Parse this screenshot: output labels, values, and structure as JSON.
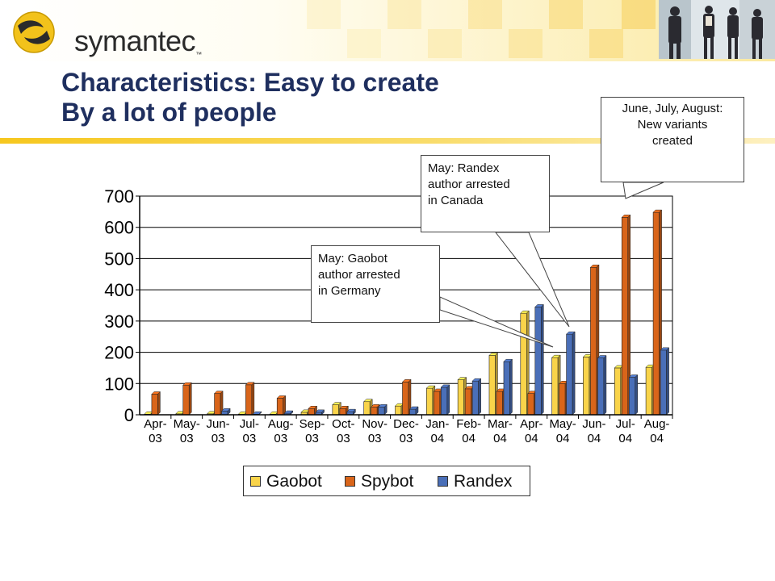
{
  "header": {
    "logo_text": "symantec",
    "logo_mark": "™",
    "colors": {
      "band_light": "#fdf3c2",
      "band_accent": "#f5d04a",
      "title_color": "#1f2f5f"
    }
  },
  "slide": {
    "title_line1": "Characteristics: Easy to create",
    "title_line2": "By a lot of people"
  },
  "callouts": {
    "gaobot": {
      "lines": [
        "May: Gaobot",
        "author arrested",
        "in Germany"
      ]
    },
    "randex": {
      "lines": [
        "May: Randex",
        "author arrested",
        "in Canada"
      ]
    },
    "summer": {
      "lines": [
        "June, July, August:",
        "New variants",
        "created"
      ]
    }
  },
  "legend": {
    "items": [
      {
        "label": "Gaobot",
        "color": "#f9d44a"
      },
      {
        "label": "Spybot",
        "color": "#d9651a"
      },
      {
        "label": "Randex",
        "color": "#4a6fb8"
      }
    ]
  },
  "chart_data": {
    "type": "bar",
    "categories": [
      "Apr-03",
      "May-03",
      "Jun-03",
      "Jul-03",
      "Aug-03",
      "Sep-03",
      "Oct-03",
      "Nov-03",
      "Dec-03",
      "Jan-04",
      "Feb-04",
      "Mar-04",
      "Apr-04",
      "May-04",
      "Jun-04",
      "Jul-04",
      "Aug-04"
    ],
    "category_lines": [
      [
        "Apr-",
        "03"
      ],
      [
        "May-",
        "03"
      ],
      [
        "Jun-",
        "03"
      ],
      [
        "Jul-",
        "03"
      ],
      [
        "Aug-",
        "03"
      ],
      [
        "Sep-",
        "03"
      ],
      [
        "Oct-",
        "03"
      ],
      [
        "Nov-",
        "03"
      ],
      [
        "Dec-",
        "03"
      ],
      [
        "Jan-",
        "04"
      ],
      [
        "Feb-",
        "04"
      ],
      [
        "Mar-",
        "04"
      ],
      [
        "Apr-",
        "04"
      ],
      [
        "May-",
        "04"
      ],
      [
        "Jun-",
        "04"
      ],
      [
        "Jul-",
        "04"
      ],
      [
        "Aug-",
        "04"
      ]
    ],
    "series": [
      {
        "name": "Gaobot",
        "color": "#f9d44a",
        "values": [
          2,
          3,
          3,
          2,
          2,
          8,
          32,
          42,
          28,
          85,
          112,
          190,
          325,
          183,
          185,
          150,
          152
        ]
      },
      {
        "name": "Spybot",
        "color": "#d9651a",
        "values": [
          66,
          95,
          68,
          96,
          53,
          20,
          20,
          25,
          105,
          75,
          83,
          75,
          68,
          100,
          472,
          632,
          648
        ]
      },
      {
        "name": "Randex",
        "color": "#4a6fb8",
        "values": [
          0,
          0,
          12,
          2,
          5,
          8,
          10,
          25,
          18,
          88,
          108,
          170,
          345,
          258,
          182,
          120,
          207
        ]
      }
    ],
    "yticks": [
      0,
      100,
      200,
      300,
      400,
      500,
      600,
      700
    ],
    "ylim": [
      0,
      700
    ],
    "grid": true,
    "legend_position": "bottom"
  }
}
